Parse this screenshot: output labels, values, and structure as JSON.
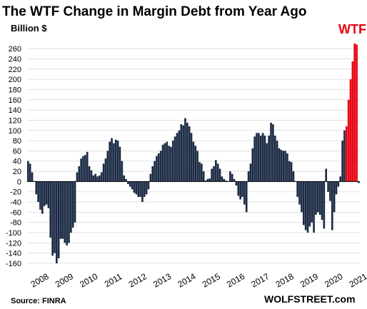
{
  "chart_data": {
    "type": "bar",
    "title": "The WTF Change in Margin Debt from Year Ago",
    "ylabel": "Billion $",
    "ylim": [
      -160,
      270
    ],
    "yticks": [
      260,
      240,
      220,
      200,
      180,
      160,
      140,
      120,
      100,
      80,
      60,
      40,
      20,
      0,
      -20,
      -40,
      -60,
      -80,
      -100,
      -120,
      -140,
      -160
    ],
    "x_tick_labels": [
      "2008",
      "2009",
      "2010",
      "2011",
      "2012",
      "2013",
      "2014",
      "2015",
      "2016",
      "2017",
      "2018",
      "2019",
      "2020",
      "2021"
    ],
    "start": "2008-01",
    "end": "2021-05",
    "annotation": "WTF",
    "source": "Source: FINRA",
    "brand": "WOLFSTREET.com",
    "colors": {
      "bars": "#1b2a44",
      "recent": "#e8000f",
      "annotation": "#e8000f"
    },
    "recent_months": 6,
    "values": [
      40,
      35,
      18,
      1,
      -25,
      -40,
      -55,
      -63,
      -48,
      -45,
      -52,
      -110,
      -145,
      -140,
      -160,
      -150,
      -112,
      -112,
      -120,
      -125,
      -120,
      -100,
      -90,
      -80,
      18,
      30,
      45,
      50,
      52,
      58,
      30,
      22,
      12,
      15,
      10,
      12,
      18,
      35,
      45,
      60,
      78,
      85,
      75,
      82,
      80,
      68,
      40,
      12,
      5,
      -5,
      -10,
      -15,
      -22,
      -25,
      -30,
      -30,
      -40,
      -30,
      -25,
      -15,
      15,
      30,
      40,
      50,
      55,
      60,
      72,
      75,
      78,
      70,
      68,
      80,
      88,
      95,
      100,
      112,
      110,
      124,
      115,
      108,
      95,
      78,
      70,
      60,
      38,
      35,
      20,
      2,
      5,
      6,
      25,
      30,
      42,
      35,
      25,
      10,
      5,
      2,
      0,
      20,
      15,
      5,
      -8,
      -28,
      -35,
      -30,
      -45,
      -60,
      20,
      35,
      65,
      88,
      95,
      95,
      90,
      95,
      90,
      75,
      90,
      115,
      112,
      90,
      80,
      65,
      62,
      60,
      60,
      55,
      40,
      38,
      20,
      0,
      -30,
      -45,
      -60,
      -85,
      -95,
      -100,
      -88,
      -80,
      -100,
      -65,
      -60,
      -65,
      -75,
      -92,
      25,
      -20,
      -38,
      -95,
      -60,
      -25,
      -10,
      10,
      80,
      100,
      108,
      160,
      200,
      235,
      270,
      268,
      -3
    ]
  }
}
